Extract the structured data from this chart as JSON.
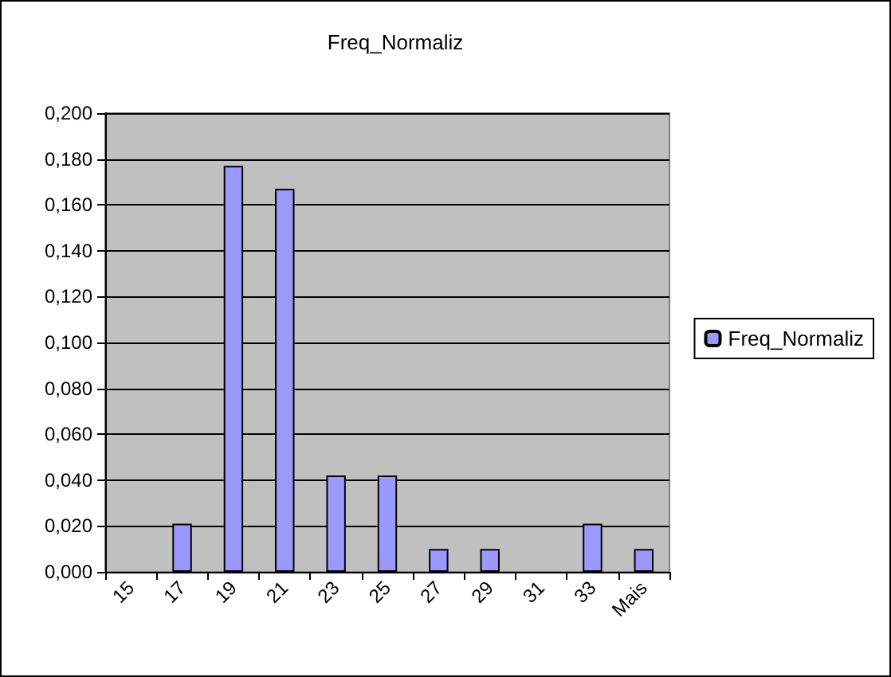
{
  "chart_data": {
    "type": "bar",
    "title": "Freq_Normaliz",
    "categories": [
      "15",
      "17",
      "19",
      "21",
      "23",
      "25",
      "27",
      "29",
      "31",
      "33",
      "Mais"
    ],
    "series": [
      {
        "name": "Freq_Normaliz",
        "color": "#9999ff",
        "values": [
          0,
          0.021,
          0.177,
          0.167,
          0.042,
          0.042,
          0.01,
          0.01,
          0,
          0.021,
          0.01
        ]
      }
    ],
    "ylim": [
      0,
      0.2
    ],
    "yticks": [
      {
        "value": 0,
        "label": "0,000"
      },
      {
        "value": 0.02,
        "label": "0,020"
      },
      {
        "value": 0.04,
        "label": "0,040"
      },
      {
        "value": 0.06,
        "label": "0,060"
      },
      {
        "value": 0.08,
        "label": "0,080"
      },
      {
        "value": 0.1,
        "label": "0,100"
      },
      {
        "value": 0.12,
        "label": "0,120"
      },
      {
        "value": 0.14,
        "label": "0,140"
      },
      {
        "value": 0.16,
        "label": "0,160"
      },
      {
        "value": 0.18,
        "label": "0,180"
      },
      {
        "value": 0.2,
        "label": "0,200"
      }
    ],
    "grid": "y",
    "legend": "right"
  }
}
